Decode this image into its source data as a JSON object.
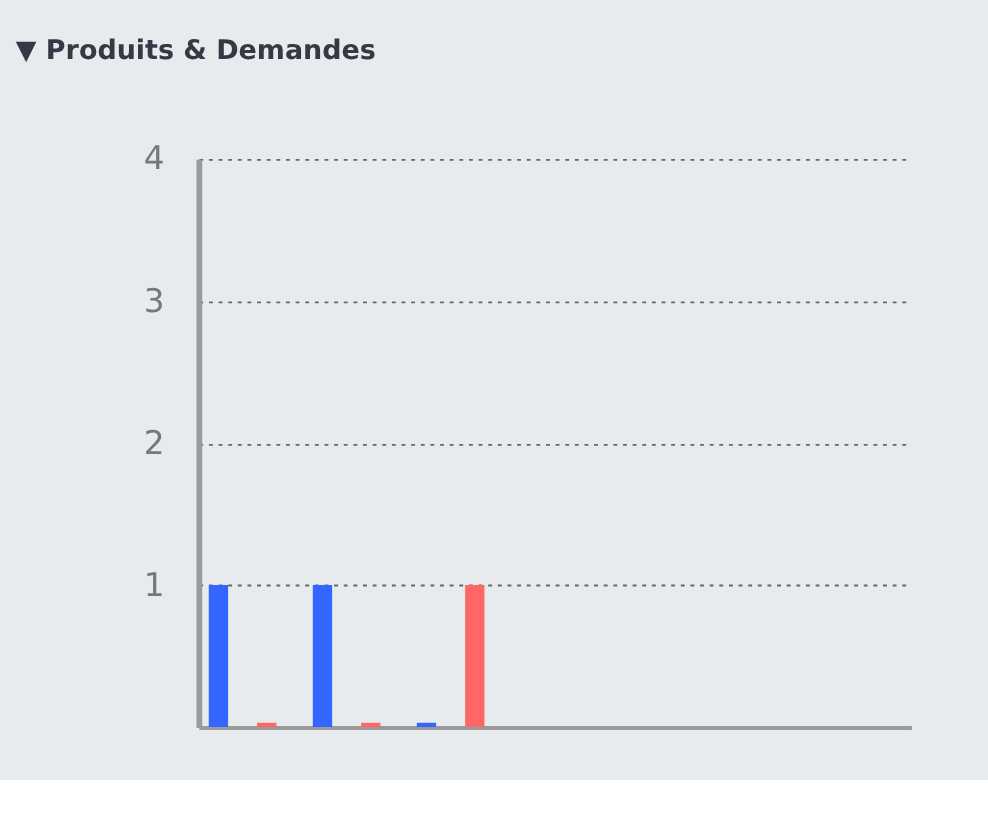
{
  "chart_data": {
    "type": "bar",
    "title": "▼ Produits & Demandes",
    "categories": [
      null,
      null,
      null,
      null,
      null,
      null,
      null
    ],
    "series": [
      {
        "color": "#3366ff",
        "values": [
          1,
          1,
          0.03,
          null,
          null,
          null,
          null
        ]
      },
      {
        "color": "#ff6666",
        "values": [
          0.03,
          0.03,
          1,
          null,
          null,
          null,
          null
        ]
      }
    ],
    "ylim": [
      0,
      4
    ],
    "yticks": [
      1,
      2,
      3,
      4
    ],
    "grid": "y",
    "legend": false,
    "tick_labels": "y"
  }
}
